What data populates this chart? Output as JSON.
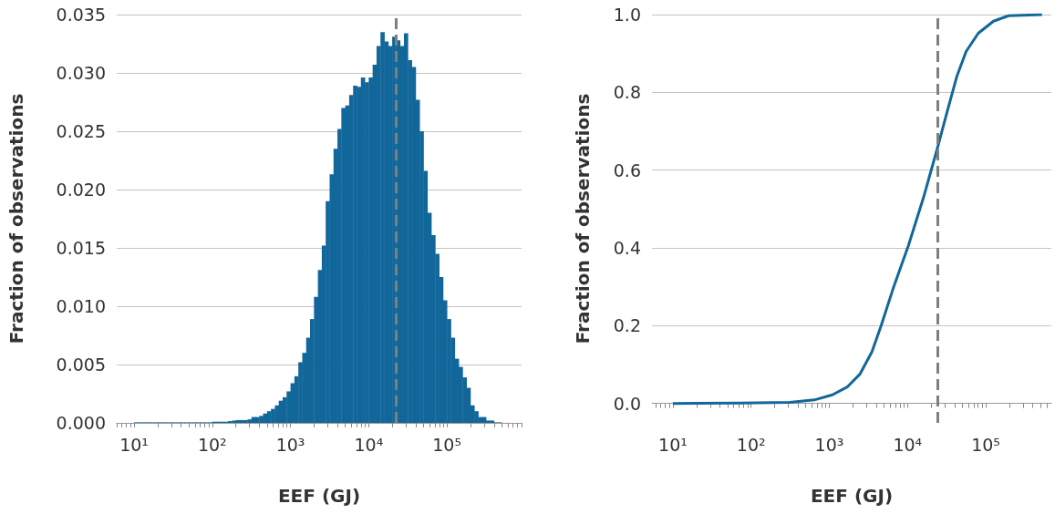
{
  "chart_data": [
    {
      "type": "histogram",
      "xlabel": "EEF (GJ)",
      "ylabel": "Fraction of observations",
      "color": "#12679a",
      "log": "x",
      "grid": "y",
      "bins": [
        10,
        11.22,
        12.59,
        14.13,
        15.85,
        17.78,
        19.95,
        22.39,
        25.12,
        28.18,
        31.62,
        35.48,
        39.81,
        44.67,
        50.12,
        56.23,
        63.1,
        70.79,
        79.43,
        89.13,
        100,
        112.2,
        125.9,
        141.3,
        158.5,
        177.8,
        199.5,
        223.9,
        251.2,
        281.8,
        316.2,
        354.8,
        398.1,
        446.7,
        501.2,
        562.3,
        631,
        707.9,
        794.3,
        891.3,
        1000,
        1122,
        1259,
        1413,
        1585,
        1778,
        1995,
        2239,
        2512,
        2818,
        3162,
        3548,
        3981,
        4467,
        5012,
        5623,
        6310,
        7079,
        7943,
        8913,
        10000,
        11220,
        12590,
        14130,
        15850,
        17780,
        19950,
        22390,
        25120,
        28180,
        31620,
        35480,
        39810,
        44670,
        50120,
        56230,
        63100,
        70790,
        79430,
        89130,
        100000,
        112200,
        125900,
        141300,
        158500,
        177800,
        199500,
        223900,
        251200,
        281800,
        316200,
        354800,
        398100,
        446700,
        501200
      ],
      "values": [
        5e-05,
        5e-05,
        5e-05,
        5e-05,
        5e-05,
        5e-05,
        5e-05,
        5e-05,
        5e-05,
        5e-05,
        5e-05,
        5e-05,
        5e-05,
        5e-05,
        5e-05,
        5e-05,
        5e-05,
        5e-05,
        5e-05,
        5e-05,
        0.0001,
        0.0001,
        0.0001,
        0.0001,
        0.00015,
        0.0002,
        0.00024,
        0.00024,
        0.00024,
        0.0003,
        0.0005,
        0.0005,
        0.0006,
        0.0008,
        0.001,
        0.0012,
        0.0015,
        0.0019,
        0.0022,
        0.0027,
        0.0034,
        0.004,
        0.0052,
        0.006,
        0.0073,
        0.0089,
        0.0108,
        0.0131,
        0.0152,
        0.019,
        0.0213,
        0.0235,
        0.0252,
        0.027,
        0.0272,
        0.0281,
        0.0289,
        0.0288,
        0.0296,
        0.0292,
        0.0296,
        0.0307,
        0.0323,
        0.0335,
        0.0327,
        0.0323,
        0.0331,
        0.0328,
        0.0323,
        0.0334,
        0.0311,
        0.0305,
        0.0277,
        0.025,
        0.0216,
        0.018,
        0.0161,
        0.0145,
        0.0125,
        0.0105,
        0.0089,
        0.0073,
        0.0055,
        0.0048,
        0.0039,
        0.003,
        0.0015,
        0.001,
        0.0005,
        0.0005,
        0.0002,
        0.0002,
        5e-05,
        5e-05
      ],
      "xlim": [
        6,
        900000
      ],
      "xticks": [
        {
          "value": 6,
          "label": null
        },
        {
          "value": 7,
          "label": null
        },
        {
          "value": 8,
          "label": null
        },
        {
          "value": 9,
          "label": null
        },
        {
          "value": 10,
          "label": "10¹"
        },
        {
          "value": 20,
          "label": null
        },
        {
          "value": 30,
          "label": null
        },
        {
          "value": 40,
          "label": null
        },
        {
          "value": 50,
          "label": null
        },
        {
          "value": 60,
          "label": null
        },
        {
          "value": 70,
          "label": null
        },
        {
          "value": 80,
          "label": null
        },
        {
          "value": 90,
          "label": null
        },
        {
          "value": 100,
          "label": "10²"
        },
        {
          "value": 200,
          "label": null
        },
        {
          "value": 300,
          "label": null
        },
        {
          "value": 400,
          "label": null
        },
        {
          "value": 500,
          "label": null
        },
        {
          "value": 600,
          "label": null
        },
        {
          "value": 700,
          "label": null
        },
        {
          "value": 800,
          "label": null
        },
        {
          "value": 900,
          "label": null
        },
        {
          "value": 1000,
          "label": "10³"
        },
        {
          "value": 2000,
          "label": null
        },
        {
          "value": 3000,
          "label": null
        },
        {
          "value": 4000,
          "label": null
        },
        {
          "value": 5000,
          "label": null
        },
        {
          "value": 6000,
          "label": null
        },
        {
          "value": 7000,
          "label": null
        },
        {
          "value": 8000,
          "label": null
        },
        {
          "value": 9000,
          "label": null
        },
        {
          "value": 10000,
          "label": "10⁴"
        },
        {
          "value": 20000,
          "label": null
        },
        {
          "value": 30000,
          "label": null
        },
        {
          "value": 40000,
          "label": null
        },
        {
          "value": 50000,
          "label": null
        },
        {
          "value": 60000,
          "label": null
        },
        {
          "value": 70000,
          "label": null
        },
        {
          "value": 80000,
          "label": null
        },
        {
          "value": 90000,
          "label": null
        },
        {
          "value": 100000,
          "label": "10⁵"
        },
        {
          "value": 200000,
          "label": null
        },
        {
          "value": 300000,
          "label": null
        },
        {
          "value": 400000,
          "label": null
        },
        {
          "value": 500000,
          "label": null
        },
        {
          "value": 600000,
          "label": null
        },
        {
          "value": 700000,
          "label": null
        },
        {
          "value": 800000,
          "label": null
        },
        {
          "value": 900000,
          "label": null
        }
      ],
      "ylim": [
        0,
        0.035
      ],
      "yticks": [
        {
          "value": 0,
          "label": "0.000"
        },
        {
          "value": 0.005,
          "label": "0.005"
        },
        {
          "value": 0.01,
          "label": "0.010"
        },
        {
          "value": 0.015,
          "label": "0.015"
        },
        {
          "value": 0.02,
          "label": "0.020"
        },
        {
          "value": 0.025,
          "label": "0.025"
        },
        {
          "value": 0.03,
          "label": "0.030"
        },
        {
          "value": 0.035,
          "label": "0.035"
        }
      ],
      "ref_lines": [
        {
          "axis": "x",
          "value": 22400,
          "color": "#7f7f7f",
          "line_style": "dashed"
        }
      ]
    },
    {
      "type": "line",
      "xlabel": "EEF (GJ)",
      "ylabel": "Fraction of observations",
      "color": "#12679a",
      "log": "x",
      "grid": "y",
      "x": [
        10,
        74.8,
        313,
        640,
        1096,
        1714,
        2455,
        3508,
        4581,
        6561,
        10260,
        16030,
        23990,
        32810,
        42850,
        56100,
        80170,
        125600,
        196300,
        524800
      ],
      "values": [
        0,
        0.001,
        0.003,
        0.009,
        0.022,
        0.043,
        0.075,
        0.133,
        0.199,
        0.296,
        0.406,
        0.53,
        0.655,
        0.757,
        0.842,
        0.905,
        0.952,
        0.983,
        0.997,
        1.0
      ],
      "xlim": [
        5.4,
        690000
      ],
      "xticks": [
        {
          "value": 6,
          "label": null
        },
        {
          "value": 7,
          "label": null
        },
        {
          "value": 8,
          "label": null
        },
        {
          "value": 9,
          "label": null
        },
        {
          "value": 10,
          "label": "10¹"
        },
        {
          "value": 20,
          "label": null
        },
        {
          "value": 30,
          "label": null
        },
        {
          "value": 40,
          "label": null
        },
        {
          "value": 50,
          "label": null
        },
        {
          "value": 60,
          "label": null
        },
        {
          "value": 70,
          "label": null
        },
        {
          "value": 80,
          "label": null
        },
        {
          "value": 90,
          "label": null
        },
        {
          "value": 100,
          "label": "10²"
        },
        {
          "value": 200,
          "label": null
        },
        {
          "value": 300,
          "label": null
        },
        {
          "value": 400,
          "label": null
        },
        {
          "value": 500,
          "label": null
        },
        {
          "value": 600,
          "label": null
        },
        {
          "value": 700,
          "label": null
        },
        {
          "value": 800,
          "label": null
        },
        {
          "value": 900,
          "label": null
        },
        {
          "value": 1000,
          "label": "10³"
        },
        {
          "value": 2000,
          "label": null
        },
        {
          "value": 3000,
          "label": null
        },
        {
          "value": 4000,
          "label": null
        },
        {
          "value": 5000,
          "label": null
        },
        {
          "value": 6000,
          "label": null
        },
        {
          "value": 7000,
          "label": null
        },
        {
          "value": 8000,
          "label": null
        },
        {
          "value": 9000,
          "label": null
        },
        {
          "value": 10000,
          "label": "10⁴"
        },
        {
          "value": 20000,
          "label": null
        },
        {
          "value": 30000,
          "label": null
        },
        {
          "value": 40000,
          "label": null
        },
        {
          "value": 50000,
          "label": null
        },
        {
          "value": 60000,
          "label": null
        },
        {
          "value": 70000,
          "label": null
        },
        {
          "value": 80000,
          "label": null
        },
        {
          "value": 90000,
          "label": null
        },
        {
          "value": 100000,
          "label": "10⁵"
        },
        {
          "value": 200000,
          "label": null
        },
        {
          "value": 300000,
          "label": null
        },
        {
          "value": 400000,
          "label": null
        },
        {
          "value": 500000,
          "label": null
        },
        {
          "value": 600000,
          "label": null
        }
      ],
      "ylim": [
        -0.05,
        1.0
      ],
      "yticks": [
        {
          "value": 0,
          "label": "0.0"
        },
        {
          "value": 0.2,
          "label": "0.2"
        },
        {
          "value": 0.4,
          "label": "0.4"
        },
        {
          "value": 0.6,
          "label": "0.6"
        },
        {
          "value": 0.8,
          "label": "0.8"
        },
        {
          "value": 1.0,
          "label": "1.0"
        }
      ],
      "ref_lines": [
        {
          "axis": "x",
          "value": 24000,
          "color": "#7f7f7f",
          "line_style": "dashed"
        }
      ]
    }
  ]
}
